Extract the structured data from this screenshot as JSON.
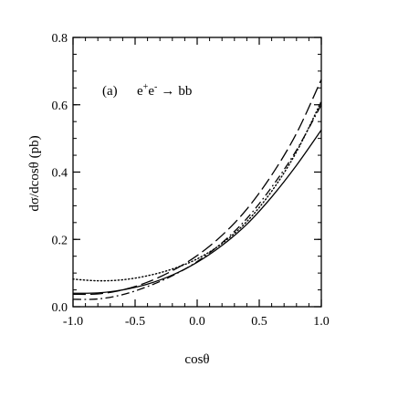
{
  "chart_data": {
    "type": "line",
    "annotation": {
      "panel": "(a)",
      "process_lhs": "e",
      "sup_plus": "+",
      "sup_minus": "-",
      "arrow": "→",
      "process_rhs": "bb"
    },
    "xlabel": "cosθ",
    "ylabel": "dσ/dcosθ  (pb)",
    "xlim": [
      -1.0,
      1.0
    ],
    "ylim": [
      0.0,
      0.8
    ],
    "xticks": [
      {
        "value": -1.0,
        "label": "-1.0"
      },
      {
        "value": -0.5,
        "label": "-0.5"
      },
      {
        "value": 0.0,
        "label": "0.0"
      },
      {
        "value": 0.5,
        "label": "0.5"
      },
      {
        "value": 1.0,
        "label": "1.0"
      }
    ],
    "yticks": [
      {
        "value": 0.0,
        "label": "0.0"
      },
      {
        "value": 0.2,
        "label": "0.2"
      },
      {
        "value": 0.4,
        "label": "0.4"
      },
      {
        "value": 0.6,
        "label": "0.6"
      },
      {
        "value": 0.8,
        "label": "0.8"
      }
    ],
    "x_minor_step": 0.1,
    "y_minor_step": 0.05,
    "grid": false,
    "legend": "none",
    "x": [
      -1.0,
      -0.8,
      -0.6,
      -0.4,
      -0.2,
      0.0,
      0.2,
      0.4,
      0.6,
      0.8,
      1.0
    ],
    "series": [
      {
        "style": "solid",
        "values": [
          0.04,
          0.041,
          0.05,
          0.067,
          0.094,
          0.132,
          0.182,
          0.245,
          0.326,
          0.42,
          0.525
        ]
      },
      {
        "style": "dotted",
        "values": [
          0.082,
          0.077,
          0.08,
          0.092,
          0.112,
          0.142,
          0.188,
          0.253,
          0.343,
          0.46,
          0.61
        ]
      },
      {
        "style": "dash-dot",
        "values": [
          0.022,
          0.023,
          0.036,
          0.06,
          0.092,
          0.134,
          0.19,
          0.262,
          0.355,
          0.465,
          0.6
        ]
      },
      {
        "style": "long-dash",
        "values": [
          0.037,
          0.038,
          0.05,
          0.073,
          0.107,
          0.152,
          0.212,
          0.29,
          0.391,
          0.515,
          0.675
        ]
      }
    ]
  }
}
